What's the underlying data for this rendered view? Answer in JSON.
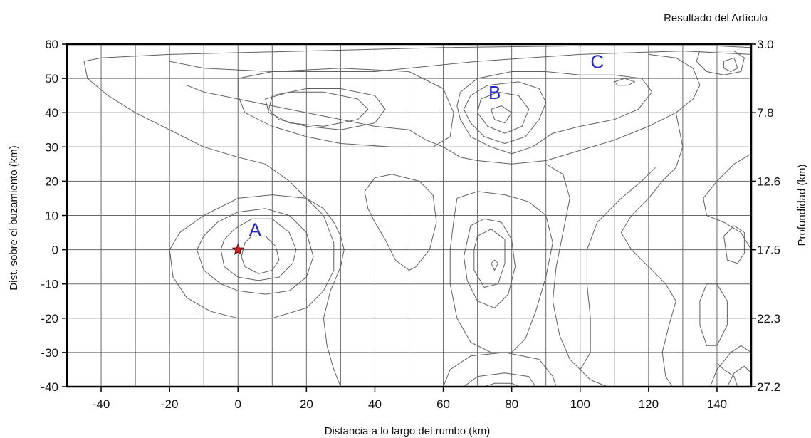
{
  "chart_data": {
    "type": "contour",
    "title": "Resultado  del Artículo",
    "xlabel": "Distancia a lo largo del rumbo (km)",
    "ylabel": "Dist. sobre el buzamiento (km)",
    "y2label": "Profundidad (km)",
    "xlim": [
      -50,
      150
    ],
    "ylim": [
      -40,
      60
    ],
    "xticks": [
      -40,
      -20,
      0,
      20,
      40,
      60,
      80,
      100,
      120,
      140
    ],
    "yticks": [
      -40,
      -30,
      -20,
      -10,
      0,
      10,
      20,
      30,
      40,
      50,
      60
    ],
    "x_gridlines": [
      -40,
      -30,
      -20,
      -10,
      0,
      10,
      20,
      30,
      40,
      50,
      60,
      70,
      80,
      90,
      100,
      110,
      120,
      130,
      140
    ],
    "y_gridlines": [
      -30,
      -20,
      -10,
      0,
      10,
      20,
      30,
      40,
      50
    ],
    "grid": true,
    "depth_ticks": [
      {
        "y": 60,
        "label": "3.0"
      },
      {
        "y": 40,
        "label": "7.8"
      },
      {
        "y": 20,
        "label": "12.6"
      },
      {
        "y": 0,
        "label": "17.5"
      },
      {
        "y": -20,
        "label": "22.3"
      },
      {
        "y": -40,
        "label": "27.2"
      }
    ],
    "hypocenter": {
      "x": 0,
      "y": 0,
      "color": "#d42020"
    },
    "annotations": [
      {
        "text": "A",
        "x": 5,
        "y": 4
      },
      {
        "text": "B",
        "x": 75,
        "y": 44
      },
      {
        "text": "C",
        "x": 105,
        "y": 53
      }
    ],
    "contour_color": "#606060",
    "annotation_color": "#2525c8",
    "contours": [
      [
        [
          -45,
          55
        ],
        [
          -40,
          56
        ],
        [
          -20,
          57
        ],
        [
          20,
          58
        ],
        [
          60,
          59
        ],
        [
          100,
          59.5
        ],
        [
          140,
          59.5
        ],
        [
          150,
          59
        ]
      ],
      [
        [
          -45,
          55
        ],
        [
          -44,
          50
        ],
        [
          -38,
          45
        ],
        [
          -30,
          40
        ],
        [
          -20,
          35
        ],
        [
          -10,
          30
        ],
        [
          0,
          27
        ],
        [
          8,
          25
        ],
        [
          15,
          20
        ],
        [
          20,
          15
        ],
        [
          25,
          12
        ],
        [
          28,
          8
        ],
        [
          30,
          4
        ],
        [
          31,
          0
        ],
        [
          30,
          -5
        ],
        [
          27,
          -12
        ],
        [
          25,
          -20
        ],
        [
          26,
          -28
        ],
        [
          28,
          -35
        ],
        [
          30,
          -40
        ]
      ],
      [
        [
          -20,
          55
        ],
        [
          -10,
          53
        ],
        [
          10,
          52
        ],
        [
          40,
          52
        ],
        [
          70,
          55
        ],
        [
          100,
          57
        ],
        [
          130,
          58
        ],
        [
          150,
          57
        ]
      ],
      [
        [
          -15,
          48
        ],
        [
          -10,
          46
        ],
        [
          0,
          44
        ],
        [
          10,
          42
        ],
        [
          20,
          40
        ],
        [
          30,
          38
        ],
        [
          40,
          36
        ],
        [
          50,
          35
        ],
        [
          55,
          32
        ],
        [
          60,
          30
        ],
        [
          65,
          27
        ],
        [
          70,
          26
        ],
        [
          80,
          25
        ],
        [
          90,
          26
        ],
        [
          100,
          29
        ],
        [
          110,
          32
        ],
        [
          120,
          36
        ],
        [
          128,
          40
        ],
        [
          133,
          44
        ],
        [
          135,
          48
        ],
        [
          133,
          53
        ],
        [
          128,
          56
        ],
        [
          120,
          57
        ]
      ],
      [
        [
          0,
          50
        ],
        [
          10,
          52
        ],
        [
          30,
          53
        ],
        [
          50,
          52
        ],
        [
          60,
          47
        ],
        [
          63,
          40
        ],
        [
          62,
          33
        ],
        [
          57,
          30
        ],
        [
          45,
          30
        ],
        [
          30,
          31
        ],
        [
          20,
          33
        ],
        [
          10,
          36
        ],
        [
          2,
          40
        ],
        [
          0,
          45
        ],
        [
          0,
          50
        ]
      ],
      [
        [
          10,
          45
        ],
        [
          20,
          47
        ],
        [
          30,
          47
        ],
        [
          40,
          45
        ],
        [
          43,
          41
        ],
        [
          40,
          37
        ],
        [
          30,
          35
        ],
        [
          20,
          36
        ],
        [
          12,
          38
        ],
        [
          9,
          41
        ],
        [
          10,
          45
        ]
      ],
      [
        [
          8,
          44
        ],
        [
          15,
          46
        ],
        [
          25,
          46
        ],
        [
          35,
          44
        ],
        [
          38,
          41
        ],
        [
          35,
          38
        ],
        [
          25,
          36
        ],
        [
          15,
          37
        ],
        [
          9,
          40
        ],
        [
          8,
          44
        ]
      ],
      [
        [
          65,
          46
        ],
        [
          70,
          50
        ],
        [
          80,
          52
        ],
        [
          90,
          52
        ],
        [
          100,
          51
        ],
        [
          110,
          51
        ],
        [
          118,
          50
        ],
        [
          121,
          46
        ],
        [
          117,
          41
        ],
        [
          110,
          38
        ],
        [
          100,
          36
        ],
        [
          92,
          34
        ],
        [
          86,
          30
        ],
        [
          80,
          28
        ],
        [
          74,
          30
        ],
        [
          68,
          33
        ],
        [
          65,
          38
        ],
        [
          64,
          42
        ],
        [
          65,
          46
        ]
      ],
      [
        [
          68,
          45
        ],
        [
          73,
          48
        ],
        [
          82,
          49
        ],
        [
          88,
          47
        ],
        [
          90,
          43
        ],
        [
          88,
          38
        ],
        [
          84,
          33
        ],
        [
          78,
          31
        ],
        [
          72,
          33
        ],
        [
          68,
          37
        ],
        [
          66,
          41
        ],
        [
          68,
          45
        ]
      ],
      [
        [
          71,
          44
        ],
        [
          76,
          46
        ],
        [
          82,
          45
        ],
        [
          85,
          41
        ],
        [
          83,
          36
        ],
        [
          78,
          34
        ],
        [
          73,
          36
        ],
        [
          70,
          40
        ],
        [
          71,
          44
        ]
      ],
      [
        [
          74,
          41
        ],
        [
          77,
          42
        ],
        [
          80,
          40
        ],
        [
          78,
          37
        ],
        [
          75,
          38
        ],
        [
          74,
          41
        ]
      ],
      [
        [
          110,
          49
        ],
        [
          113,
          50
        ],
        [
          116,
          49
        ],
        [
          114,
          48
        ],
        [
          111,
          48
        ],
        [
          110,
          49
        ]
      ],
      [
        [
          135,
          58
        ],
        [
          140,
          58
        ],
        [
          145,
          58
        ],
        [
          148,
          56
        ],
        [
          147,
          52
        ],
        [
          142,
          51
        ],
        [
          137,
          52
        ],
        [
          134,
          55
        ],
        [
          135,
          58
        ]
      ],
      [
        [
          142,
          55
        ],
        [
          145,
          56
        ],
        [
          146,
          53
        ],
        [
          144,
          52
        ],
        [
          142,
          53
        ],
        [
          142,
          55
        ]
      ],
      [
        [
          -20,
          0
        ],
        [
          -19,
          -8
        ],
        [
          -15,
          -14
        ],
        [
          -8,
          -18
        ],
        [
          0,
          -20
        ],
        [
          10,
          -20
        ],
        [
          20,
          -17
        ],
        [
          25,
          -12
        ],
        [
          28,
          -6
        ],
        [
          28,
          2
        ],
        [
          25,
          10
        ],
        [
          20,
          15
        ],
        [
          10,
          16
        ],
        [
          0,
          15
        ],
        [
          -10,
          10
        ],
        [
          -17,
          5
        ],
        [
          -20,
          0
        ]
      ],
      [
        [
          -12,
          0
        ],
        [
          -10,
          -6
        ],
        [
          -5,
          -10
        ],
        [
          0,
          -12
        ],
        [
          8,
          -13
        ],
        [
          15,
          -12
        ],
        [
          20,
          -8
        ],
        [
          22,
          -2
        ],
        [
          20,
          5
        ],
        [
          15,
          10
        ],
        [
          8,
          12
        ],
        [
          0,
          11
        ],
        [
          -6,
          8
        ],
        [
          -10,
          4
        ],
        [
          -12,
          0
        ]
      ],
      [
        [
          -5,
          0
        ],
        [
          -4,
          -5
        ],
        [
          0,
          -8
        ],
        [
          6,
          -9
        ],
        [
          12,
          -8
        ],
        [
          16,
          -4
        ],
        [
          17,
          0
        ],
        [
          15,
          5
        ],
        [
          10,
          9
        ],
        [
          4,
          9
        ],
        [
          -1,
          6
        ],
        [
          -4,
          3
        ],
        [
          -5,
          0
        ]
      ],
      [
        [
          1,
          -2
        ],
        [
          2,
          -5
        ],
        [
          6,
          -7
        ],
        [
          10,
          -6
        ],
        [
          12,
          -3
        ],
        [
          11,
          1
        ],
        [
          8,
          4
        ],
        [
          4,
          4
        ],
        [
          2,
          2
        ],
        [
          1,
          -2
        ]
      ],
      [
        [
          37,
          17
        ],
        [
          40,
          21
        ],
        [
          45,
          22
        ],
        [
          53,
          20
        ],
        [
          57,
          16
        ],
        [
          58,
          8
        ],
        [
          56,
          0
        ],
        [
          52,
          -5
        ],
        [
          50,
          -6
        ],
        [
          46,
          -3
        ],
        [
          43,
          3
        ],
        [
          40,
          8
        ],
        [
          38,
          12
        ],
        [
          37,
          17
        ]
      ],
      [
        [
          64,
          15
        ],
        [
          70,
          17
        ],
        [
          78,
          16
        ],
        [
          85,
          14
        ],
        [
          90,
          10
        ],
        [
          92,
          2
        ],
        [
          90,
          -8
        ],
        [
          87,
          -18
        ],
        [
          84,
          -26
        ],
        [
          80,
          -30
        ],
        [
          74,
          -30
        ],
        [
          68,
          -27
        ],
        [
          64,
          -20
        ],
        [
          62,
          -10
        ],
        [
          62,
          0
        ],
        [
          63,
          8
        ],
        [
          64,
          15
        ]
      ],
      [
        [
          68,
          7
        ],
        [
          72,
          9
        ],
        [
          77,
          8
        ],
        [
          80,
          3
        ],
        [
          81,
          -5
        ],
        [
          79,
          -13
        ],
        [
          75,
          -17
        ],
        [
          70,
          -15
        ],
        [
          67,
          -9
        ],
        [
          66,
          -2
        ],
        [
          68,
          7
        ]
      ],
      [
        [
          70,
          4
        ],
        [
          74,
          6
        ],
        [
          78,
          3
        ],
        [
          78,
          -4
        ],
        [
          76,
          -10
        ],
        [
          72,
          -11
        ],
        [
          69,
          -6
        ],
        [
          69,
          0
        ],
        [
          70,
          4
        ]
      ],
      [
        [
          75,
          -3
        ],
        [
          76,
          -4
        ],
        [
          75,
          -6
        ],
        [
          74,
          -4
        ],
        [
          75,
          -3
        ]
      ],
      [
        [
          60,
          -40
        ],
        [
          62,
          -35
        ],
        [
          68,
          -31
        ],
        [
          78,
          -30
        ],
        [
          88,
          -32
        ],
        [
          92,
          -37
        ],
        [
          93,
          -40
        ]
      ],
      [
        [
          66,
          -40
        ],
        [
          70,
          -37
        ],
        [
          78,
          -36
        ],
        [
          85,
          -37
        ],
        [
          87,
          -40
        ]
      ],
      [
        [
          72,
          -40
        ],
        [
          75,
          -39
        ],
        [
          80,
          -39
        ],
        [
          82,
          -40
        ]
      ],
      [
        [
          90,
          25
        ],
        [
          95,
          22
        ],
        [
          97,
          15
        ],
        [
          95,
          5
        ],
        [
          93,
          -5
        ],
        [
          92,
          -15
        ],
        [
          94,
          -25
        ],
        [
          97,
          -32
        ],
        [
          103,
          -38
        ],
        [
          108,
          -40
        ]
      ],
      [
        [
          100,
          -40
        ],
        [
          100,
          -35
        ],
        [
          103,
          -30
        ],
        [
          103,
          -20
        ],
        [
          102,
          -10
        ],
        [
          102,
          0
        ],
        [
          105,
          8
        ],
        [
          112,
          15
        ],
        [
          118,
          20
        ],
        [
          122,
          24
        ]
      ],
      [
        [
          128,
          40
        ],
        [
          130,
          30
        ],
        [
          128,
          24
        ],
        [
          124,
          20
        ],
        [
          120,
          15
        ],
        [
          115,
          10
        ],
        [
          112,
          5
        ],
        [
          115,
          0
        ],
        [
          120,
          -5
        ],
        [
          125,
          -10
        ],
        [
          128,
          -15
        ],
        [
          126,
          -22
        ],
        [
          124,
          -30
        ],
        [
          125,
          -37
        ],
        [
          127,
          -40
        ]
      ],
      [
        [
          150,
          28
        ],
        [
          145,
          25
        ],
        [
          140,
          20
        ],
        [
          136,
          15
        ],
        [
          137,
          10
        ],
        [
          142,
          8
        ],
        [
          147,
          5
        ],
        [
          150,
          0
        ]
      ],
      [
        [
          135,
          -15
        ],
        [
          137,
          -10
        ],
        [
          140,
          -10
        ],
        [
          143,
          -15
        ],
        [
          143,
          -22
        ],
        [
          140,
          -28
        ],
        [
          137,
          -28
        ],
        [
          135,
          -22
        ],
        [
          135,
          -15
        ]
      ],
      [
        [
          142,
          4
        ],
        [
          145,
          7
        ],
        [
          148,
          5
        ],
        [
          148,
          -1
        ],
        [
          146,
          -4
        ],
        [
          143,
          -3
        ],
        [
          142,
          4
        ]
      ],
      [
        [
          138,
          -40
        ],
        [
          140,
          -35
        ],
        [
          144,
          -30
        ],
        [
          147,
          -28
        ],
        [
          150,
          -30
        ]
      ],
      [
        [
          143,
          -40
        ],
        [
          145,
          -36
        ],
        [
          148,
          -34
        ],
        [
          150,
          -36
        ]
      ],
      [
        [
          140,
          -33
        ],
        [
          142,
          -35
        ],
        [
          145,
          -37
        ],
        [
          146,
          -40
        ]
      ]
    ]
  }
}
